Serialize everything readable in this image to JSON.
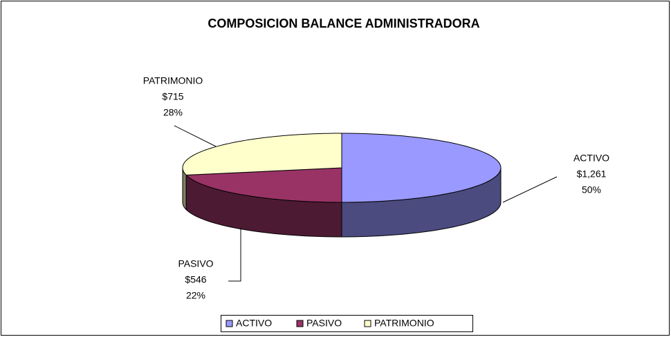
{
  "chart_data": {
    "type": "pie3d",
    "title": "COMPOSICION BALANCE ADMINISTRADORA",
    "categories": [
      "ACTIVO",
      "PASIVO",
      "PATRIMONIO"
    ],
    "values": [
      1261,
      546,
      715
    ],
    "value_labels": [
      "$1,261",
      "$546",
      "$715"
    ],
    "percent_labels": [
      "50%",
      "22%",
      "28%"
    ],
    "colors": [
      "#9999FF",
      "#993366",
      "#FFFFCC"
    ],
    "side_colors": [
      "#4B4B80",
      "#4D1A33",
      "#808066"
    ],
    "legend": "bottom"
  }
}
